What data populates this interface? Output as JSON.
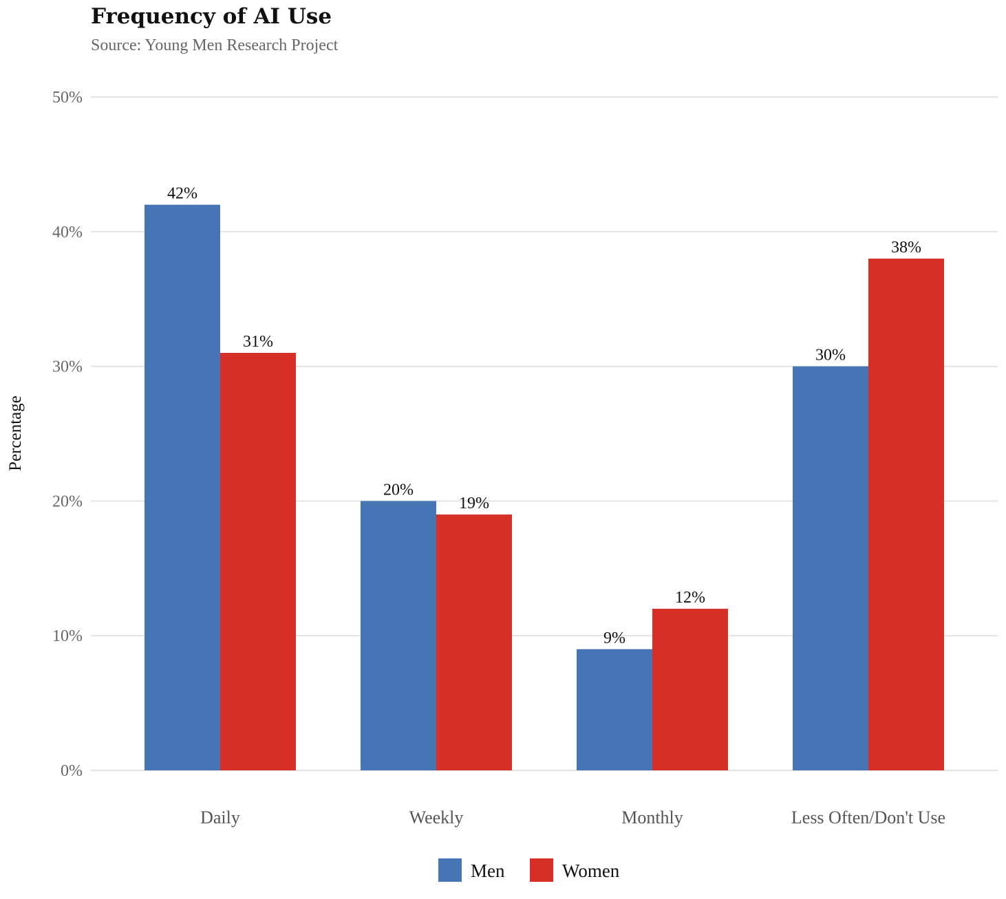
{
  "chart_data": {
    "type": "bar",
    "title": "Frequency of AI Use",
    "subtitle": "Source: Young Men Research Project",
    "xlabel": "",
    "ylabel": "Percentage",
    "categories": [
      "Daily",
      "Weekly",
      "Monthly",
      "Less Often/Don't Use"
    ],
    "series": [
      {
        "name": "Men",
        "color": "#4575b4",
        "values": [
          42,
          20,
          9,
          30
        ],
        "labels": [
          "42%",
          "20%",
          "9%",
          "30%"
        ]
      },
      {
        "name": "Women",
        "color": "#d73027",
        "values": [
          31,
          19,
          12,
          38
        ],
        "labels": [
          "31%",
          "19%",
          "12%",
          "38%"
        ]
      }
    ],
    "ylim": [
      0,
      50
    ],
    "yticks": [
      0,
      10,
      20,
      30,
      40,
      50
    ],
    "ytick_labels": [
      "0%",
      "10%",
      "20%",
      "30%",
      "40%",
      "50%"
    ],
    "grid": true,
    "legend_position": "bottom-center"
  }
}
